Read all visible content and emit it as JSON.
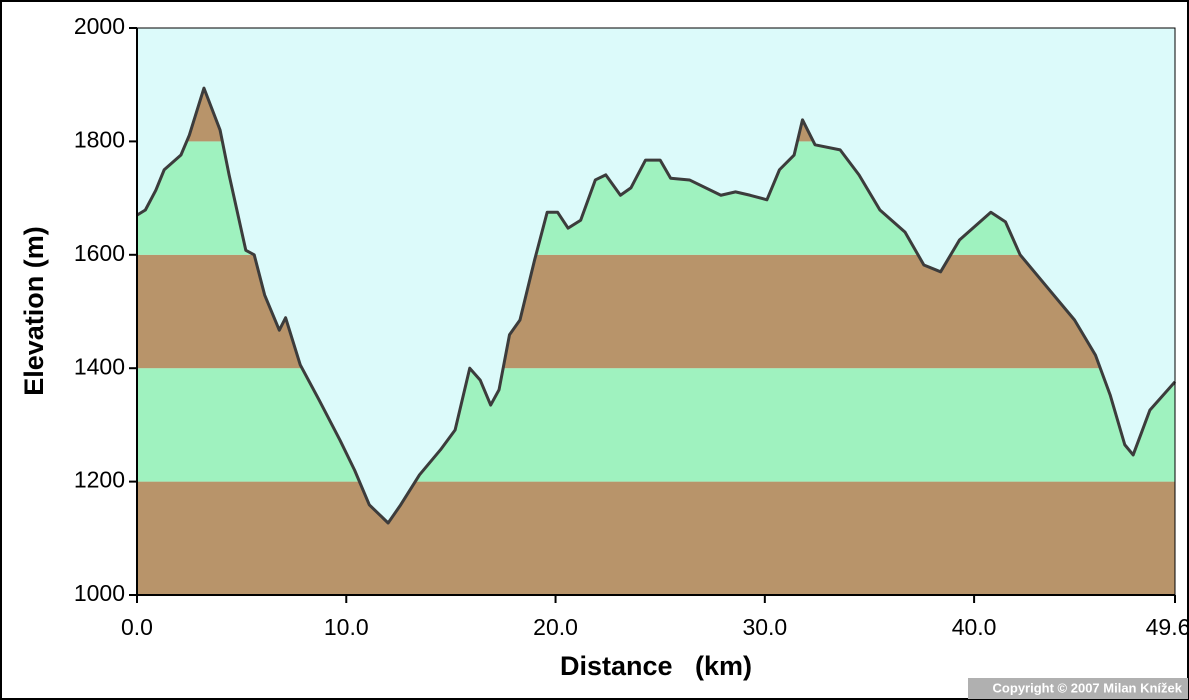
{
  "chart_data": {
    "type": "area",
    "x_label": "Distance   (km)",
    "y_label": "Elevation (m)",
    "copyright": "Copyright © 2007 Milan Knížek",
    "xlim": [
      0,
      49.6
    ],
    "ylim": [
      1000,
      2000
    ],
    "xticks": [
      {
        "value": 0,
        "label": "0.0"
      },
      {
        "value": 10,
        "label": "10.0"
      },
      {
        "value": 20,
        "label": "20.0"
      },
      {
        "value": 30,
        "label": "30.0"
      },
      {
        "value": 40,
        "label": "40.0"
      },
      49.6
    ],
    "yticks": [
      1000,
      1200,
      1400,
      1600,
      1800,
      2000
    ],
    "band_colors": [
      "#b8946a",
      "#9ff2bf"
    ],
    "sky_color": "#dcfafa",
    "line_color": "#3c3c3c",
    "x": [
      0,
      0.4,
      0.9,
      1.3,
      2.1,
      2.5,
      3.2,
      3.97,
      4.4,
      5.2,
      5.6,
      6.1,
      6.8,
      7.1,
      7.8,
      8.7,
      9.7,
      10.4,
      11.1,
      12.0,
      12.6,
      13.5,
      14.5,
      15.2,
      15.9,
      16.4,
      16.9,
      17.3,
      17.8,
      18.3,
      19.0,
      19.6,
      20.1,
      20.6,
      21.2,
      21.9,
      22.4,
      23.1,
      23.6,
      24.3,
      25.0,
      25.5,
      26.4,
      27.9,
      28.6,
      29.3,
      30.1,
      30.7,
      31.4,
      31.8,
      32.4,
      33.6,
      34.5,
      35.5,
      36.7,
      37.6,
      38.4,
      39.3,
      40.8,
      41.5,
      42.2,
      43.6,
      44.8,
      45.8,
      46.5,
      47.2,
      47.6,
      48.4,
      49.6
    ],
    "values": [
      1670,
      1679,
      1714,
      1750,
      1776,
      1811,
      1894,
      1820,
      1741,
      1608,
      1600,
      1529,
      1467,
      1489,
      1406,
      1344,
      1273,
      1220,
      1159,
      1127,
      1159,
      1212,
      1256,
      1291,
      1400,
      1379,
      1335,
      1362,
      1459,
      1485,
      1591,
      1675,
      1675,
      1647,
      1661,
      1732,
      1741,
      1705,
      1718,
      1767,
      1767,
      1735,
      1732,
      1705,
      1711,
      1705,
      1697,
      1750,
      1776,
      1838,
      1794,
      1785,
      1741,
      1679,
      1640,
      1582,
      1570,
      1626,
      1675,
      1658,
      1600,
      1538,
      1485,
      1423,
      1353,
      1265,
      1247,
      1326,
      1376
    ]
  }
}
